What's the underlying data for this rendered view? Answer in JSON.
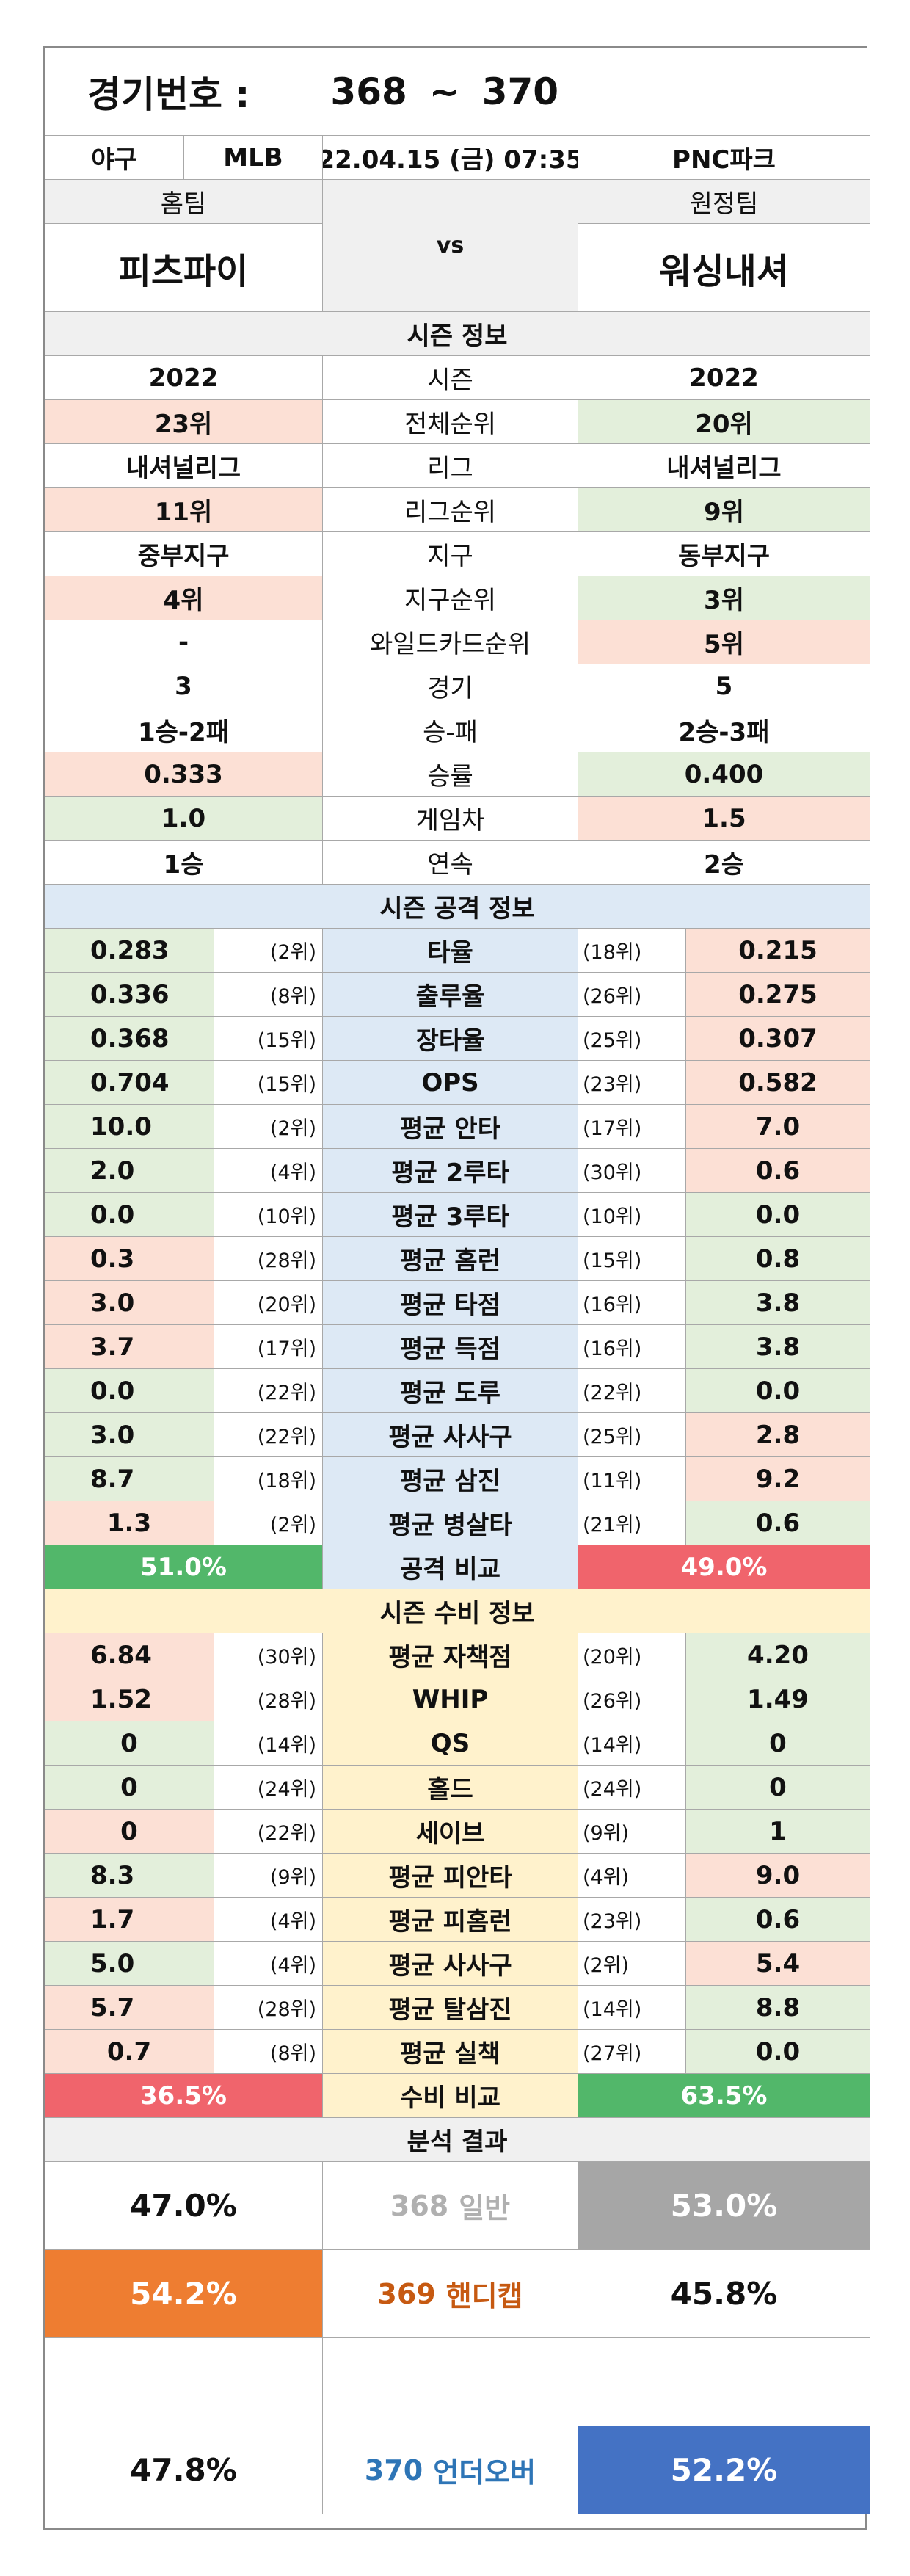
{
  "header": {
    "label": "경기번호 :",
    "game_start": "368",
    "tilde": "~",
    "game_end": "370",
    "sport": "야구",
    "league": "MLB",
    "datetime": "22.04.15 (금) 07:35",
    "venue": "PNC파크"
  },
  "teams": {
    "home_label": "홈팀",
    "away_label": "원정팀",
    "home_name": "피츠파이",
    "away_name": "워싱내셔",
    "vs": "vs"
  },
  "season": {
    "title": "시즌 정보",
    "rows": [
      {
        "label": "시즌",
        "home": "2022",
        "away": "2022",
        "home_dot": "",
        "away_dot": "",
        "home_bg": "w",
        "away_bg": "w"
      },
      {
        "label": "전체순위",
        "home": "23위",
        "away": "20위",
        "home_dot": "red",
        "away_dot": "green",
        "home_bg": "red",
        "away_bg": "green"
      },
      {
        "label": "리그",
        "home": "내셔널리그",
        "away": "내셔널리그",
        "home_dot": "",
        "away_dot": "",
        "home_bg": "w",
        "away_bg": "w"
      },
      {
        "label": "리그순위",
        "home": "11위",
        "away": "9위",
        "home_dot": "red",
        "away_dot": "green",
        "home_bg": "red",
        "away_bg": "green"
      },
      {
        "label": "지구",
        "home": "중부지구",
        "away": "동부지구",
        "home_dot": "",
        "away_dot": "",
        "home_bg": "w",
        "away_bg": "w"
      },
      {
        "label": "지구순위",
        "home": "4위",
        "away": "3위",
        "home_dot": "red",
        "away_dot": "green",
        "home_bg": "red",
        "away_bg": "green"
      },
      {
        "label": "와일드카드순위",
        "home": "-",
        "away": "5위",
        "home_dot": "",
        "away_dot": "",
        "home_bg": "w",
        "away_bg": "red"
      },
      {
        "label": "경기",
        "home": "3",
        "away": "5",
        "home_dot": "",
        "away_dot": "",
        "home_bg": "w",
        "away_bg": "w"
      },
      {
        "label": "승-패",
        "home": "1승-2패",
        "away": "2승-3패",
        "home_dot": "",
        "away_dot": "",
        "home_bg": "w",
        "away_bg": "w"
      },
      {
        "label": "승률",
        "home": "0.333",
        "away": "0.400",
        "home_dot": "red",
        "away_dot": "green",
        "home_bg": "red",
        "away_bg": "green"
      },
      {
        "label": "게임차",
        "home": "1.0",
        "away": "1.5",
        "home_dot": "green",
        "away_dot": "red",
        "home_bg": "green",
        "away_bg": "red"
      },
      {
        "label": "연속",
        "home": "1승",
        "away": "2승",
        "home_dot": "",
        "away_dot": "",
        "home_bg": "w",
        "away_bg": "w"
      }
    ]
  },
  "offense": {
    "title": "시즌 공격 정보",
    "rows": [
      {
        "label": "타율",
        "home": "0.283",
        "home_rank": "(2위)",
        "away": "0.215",
        "away_rank": "(18위)",
        "home_color": "green",
        "away_color": "red"
      },
      {
        "label": "출루율",
        "home": "0.336",
        "home_rank": "(8위)",
        "away": "0.275",
        "away_rank": "(26위)",
        "home_color": "green",
        "away_color": "red"
      },
      {
        "label": "장타율",
        "home": "0.368",
        "home_rank": "(15위)",
        "away": "0.307",
        "away_rank": "(25위)",
        "home_color": "green",
        "away_color": "red"
      },
      {
        "label": "OPS",
        "home": "0.704",
        "home_rank": "(15위)",
        "away": "0.582",
        "away_rank": "(23위)",
        "home_color": "green",
        "away_color": "red"
      },
      {
        "label": "평균 안타",
        "home": "10.0",
        "home_rank": "(2위)",
        "away": "7.0",
        "away_rank": "(17위)",
        "home_color": "green",
        "away_color": "red"
      },
      {
        "label": "평균 2루타",
        "home": "2.0",
        "home_rank": "(4위)",
        "away": "0.6",
        "away_rank": "(30위)",
        "home_color": "green",
        "away_color": "red"
      },
      {
        "label": "평균 3루타",
        "home": "0.0",
        "home_rank": "(10위)",
        "away": "0.0",
        "away_rank": "(10위)",
        "home_color": "green",
        "away_color": "green"
      },
      {
        "label": "평균 홈런",
        "home": "0.3",
        "home_rank": "(28위)",
        "away": "0.8",
        "away_rank": "(15위)",
        "home_color": "red",
        "away_color": "green"
      },
      {
        "label": "평균 타점",
        "home": "3.0",
        "home_rank": "(20위)",
        "away": "3.8",
        "away_rank": "(16위)",
        "home_color": "red",
        "away_color": "green"
      },
      {
        "label": "평균 득점",
        "home": "3.7",
        "home_rank": "(17위)",
        "away": "3.8",
        "away_rank": "(16위)",
        "home_color": "red",
        "away_color": "green"
      },
      {
        "label": "평균 도루",
        "home": "0.0",
        "home_rank": "(22위)",
        "away": "0.0",
        "away_rank": "(22위)",
        "home_color": "green",
        "away_color": "green"
      },
      {
        "label": "평균 사사구",
        "home": "3.0",
        "home_rank": "(22위)",
        "away": "2.8",
        "away_rank": "(25위)",
        "home_color": "green",
        "away_color": "red"
      },
      {
        "label": "평균 삼진",
        "home": "8.7",
        "home_rank": "(18위)",
        "away": "9.2",
        "away_rank": "(11위)",
        "home_color": "green",
        "away_color": "red"
      },
      {
        "label": "평균 병살타",
        "home": "1.3",
        "home_rank": "(2위)",
        "away": "0.6",
        "away_rank": "(21위)",
        "home_color": "red",
        "away_color": "green"
      }
    ],
    "compare": {
      "label": "공격 비교",
      "home": "51.0%",
      "away": "49.0%",
      "home_fill": "#52b76a",
      "away_fill": "#f0646c",
      "home_dot": "green",
      "away_dot": "red"
    }
  },
  "defense": {
    "title": "시즌 수비 정보",
    "rows": [
      {
        "label": "평균 자책점",
        "home": "6.84",
        "home_rank": "(30위)",
        "away": "4.20",
        "away_rank": "(20위)",
        "home_color": "red",
        "away_color": "green"
      },
      {
        "label": "WHIP",
        "home": "1.52",
        "home_rank": "(28위)",
        "away": "1.49",
        "away_rank": "(26위)",
        "home_color": "red",
        "away_color": "green"
      },
      {
        "label": "QS",
        "home": "0",
        "home_rank": "(14위)",
        "away": "0",
        "away_rank": "(14위)",
        "home_color": "green",
        "away_color": "green"
      },
      {
        "label": "홀드",
        "home": "0",
        "home_rank": "(24위)",
        "away": "0",
        "away_rank": "(24위)",
        "home_color": "green",
        "away_color": "green"
      },
      {
        "label": "세이브",
        "home": "0",
        "home_rank": "(22위)",
        "away": "1",
        "away_rank": "(9위)",
        "home_color": "red",
        "away_color": "green"
      },
      {
        "label": "평균 피안타",
        "home": "8.3",
        "home_rank": "(9위)",
        "away": "9.0",
        "away_rank": "(4위)",
        "home_color": "green",
        "away_color": "red"
      },
      {
        "label": "평균 피홈런",
        "home": "1.7",
        "home_rank": "(4위)",
        "away": "0.6",
        "away_rank": "(23위)",
        "home_color": "red",
        "away_color": "green"
      },
      {
        "label": "평균 사사구",
        "home": "5.0",
        "home_rank": "(4위)",
        "away": "5.4",
        "away_rank": "(2위)",
        "home_color": "green",
        "away_color": "red"
      },
      {
        "label": "평균 탈삼진",
        "home": "5.7",
        "home_rank": "(28위)",
        "away": "8.8",
        "away_rank": "(14위)",
        "home_color": "red",
        "away_color": "green"
      },
      {
        "label": "평균 실책",
        "home": "0.7",
        "home_rank": "(8위)",
        "away": "0.0",
        "away_rank": "(27위)",
        "home_color": "red",
        "away_color": "green"
      }
    ],
    "compare": {
      "label": "수비 비교",
      "home": "36.5%",
      "away": "63.5%",
      "home_fill": "#f0646c",
      "away_fill": "#52b76a",
      "home_dot": "red",
      "away_dot": "green"
    }
  },
  "analysis": {
    "title": "분석 결과",
    "rows": [
      {
        "game_no": "368",
        "type": "일반",
        "home": "47.0%",
        "away": "53.0%",
        "picked": "away",
        "pick_color": "#a6a6a6",
        "label_color": "#b0b0b0"
      },
      {
        "game_no": "369",
        "type": "핸디캡",
        "home": "54.2%",
        "away": "45.8%",
        "picked": "home",
        "pick_color": "#ee7d31",
        "label_color": "#c65911"
      },
      {
        "game_no": "",
        "type": "",
        "home": "",
        "away": "",
        "picked": "none",
        "pick_color": "",
        "label_color": ""
      },
      {
        "game_no": "370",
        "type": "언더오버",
        "home": "47.8%",
        "away": "52.2%",
        "picked": "away",
        "pick_color": "#4472c4",
        "label_color": "#2e75b6"
      }
    ]
  }
}
